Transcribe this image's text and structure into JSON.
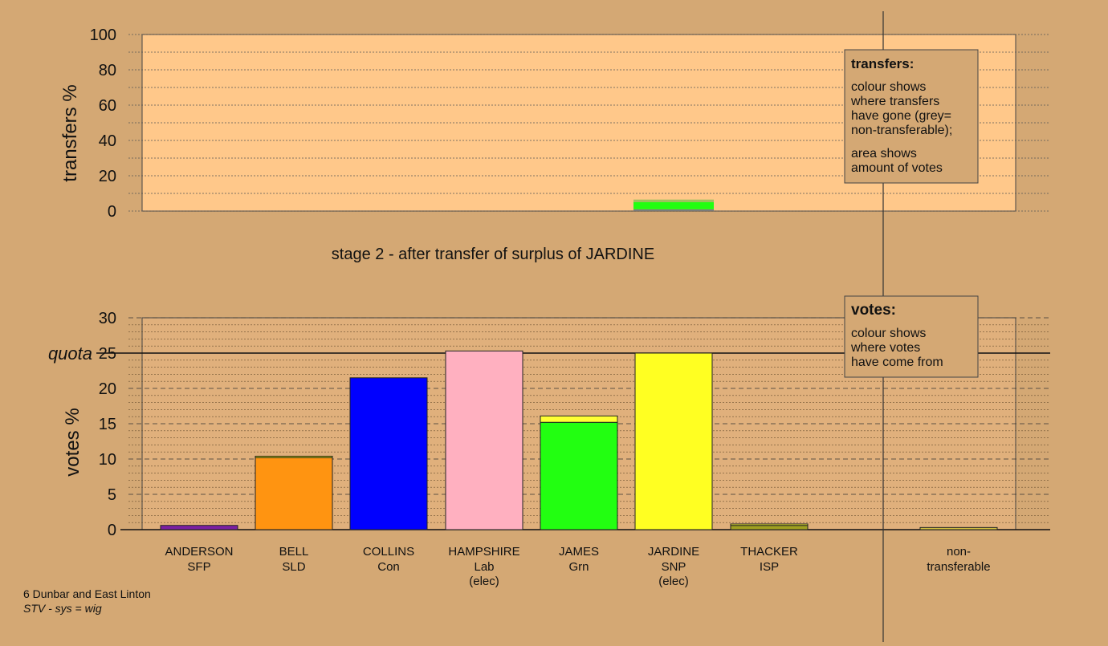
{
  "chart_data": [
    {
      "type": "bar",
      "name": "transfers",
      "ylabel": "transfers %",
      "ylim": [
        0,
        100
      ],
      "yticks": [
        0,
        20,
        40,
        60,
        80,
        100
      ],
      "grid": true,
      "title": "stage 2 - after transfer of surplus of JARDINE",
      "legend": {
        "title": "transfers:",
        "lines1": [
          "colour shows",
          "where transfers",
          "have gone (grey=",
          "non-transferable);"
        ],
        "lines2": [
          "area shows",
          "amount of votes"
        ]
      },
      "bars": [
        {
          "candidate": "JARDINE",
          "segments": [
            {
              "value": 1,
              "color": "#7a7a7a"
            },
            {
              "value": 4,
              "color": "#22ff11"
            },
            {
              "value": 1.5,
              "color": "#a0c060"
            }
          ]
        }
      ]
    },
    {
      "type": "bar",
      "name": "votes",
      "ylabel": "votes %",
      "ylim": [
        0,
        30
      ],
      "yticks": [
        0,
        5,
        10,
        15,
        20,
        25,
        30
      ],
      "quota": 25,
      "quota_label": "quota",
      "grid": true,
      "legend": {
        "title": "votes:",
        "lines1": [
          "colour shows",
          "where votes",
          "have come from"
        ]
      },
      "candidates": [
        {
          "name": "ANDERSON",
          "party": "SFP",
          "note": "",
          "segments": [
            {
              "value": 0.6,
              "color": "#7b1fa2"
            }
          ]
        },
        {
          "name": "BELL",
          "party": "SLD",
          "note": "",
          "segments": [
            {
              "value": 10.2,
              "color": "#ff9411"
            },
            {
              "value": 0.2,
              "color": "#ffff00"
            }
          ]
        },
        {
          "name": "COLLINS",
          "party": "Con",
          "note": "",
          "segments": [
            {
              "value": 21.5,
              "color": "#0000ff"
            }
          ]
        },
        {
          "name": "HAMPSHIRE",
          "party": "Lab",
          "note": "(elec)",
          "segments": [
            {
              "value": 25.3,
              "color": "#ffb0c0"
            }
          ]
        },
        {
          "name": "JAMES",
          "party": "Grn",
          "note": "",
          "segments": [
            {
              "value": 15.2,
              "color": "#22ff11"
            },
            {
              "value": 0.9,
              "color": "#ffff33"
            }
          ]
        },
        {
          "name": "JARDINE",
          "party": "SNP",
          "note": "(elec)",
          "segments": [
            {
              "value": 25.0,
              "color": "#ffff22"
            }
          ]
        },
        {
          "name": "THACKER",
          "party": "ISP",
          "note": "",
          "segments": [
            {
              "value": 0.6,
              "color": "#a0a020"
            },
            {
              "value": 0.2,
              "color": "#ffff33"
            }
          ]
        }
      ],
      "nontransferable": {
        "label1": "non-",
        "label2": "transferable",
        "value": 0.3,
        "color": "#d4c040"
      }
    }
  ],
  "footer": {
    "ward": "6 Dunbar and East Linton",
    "system": "STV - sys = wig"
  }
}
